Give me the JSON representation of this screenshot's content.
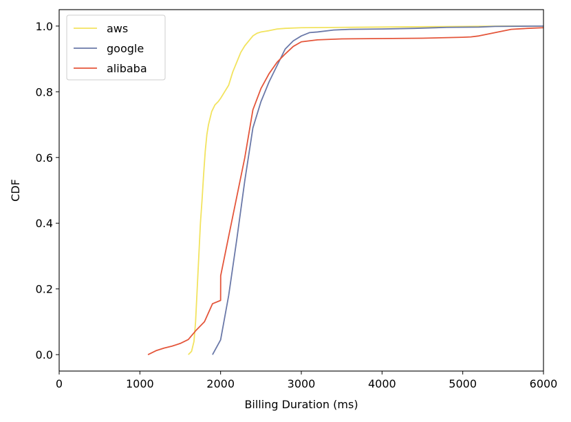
{
  "chart_data": {
    "type": "line",
    "title": "",
    "xlabel": "Billing Duration (ms)",
    "ylabel": "CDF",
    "xlim": [
      0,
      6000
    ],
    "ylim": [
      -0.05,
      1.05
    ],
    "x_ticks": [
      0,
      1000,
      2000,
      3000,
      4000,
      5000,
      6000
    ],
    "x_tick_labels": [
      "0",
      "1000",
      "2000",
      "3000",
      "4000",
      "5000",
      "6000"
    ],
    "y_ticks": [
      0.0,
      0.2,
      0.4,
      0.6,
      0.8,
      1.0
    ],
    "y_tick_labels": [
      "0.0",
      "0.2",
      "0.4",
      "0.6",
      "0.8",
      "1.0"
    ],
    "grid": false,
    "legend_position": "top-left",
    "series": [
      {
        "name": "aws",
        "color": "#f2e35e",
        "x": [
          1600,
          1640,
          1670,
          1690,
          1710,
          1730,
          1750,
          1770,
          1790,
          1810,
          1830,
          1850,
          1870,
          1890,
          1910,
          1930,
          1950,
          1970,
          2000,
          2050,
          2100,
          2150,
          2200,
          2250,
          2300,
          2350,
          2400,
          2450,
          2500,
          2550,
          2600,
          2700,
          2800,
          3000,
          3500,
          4000,
          4500,
          5000,
          5500,
          6000
        ],
        "y": [
          0.0,
          0.01,
          0.04,
          0.1,
          0.2,
          0.3,
          0.4,
          0.47,
          0.55,
          0.62,
          0.67,
          0.7,
          0.72,
          0.74,
          0.75,
          0.76,
          0.765,
          0.77,
          0.78,
          0.8,
          0.82,
          0.86,
          0.89,
          0.92,
          0.94,
          0.955,
          0.97,
          0.978,
          0.982,
          0.984,
          0.986,
          0.991,
          0.993,
          0.995,
          0.996,
          0.997,
          0.998,
          0.999,
          1.0,
          1.0
        ]
      },
      {
        "name": "google",
        "color": "#6a78a8",
        "x": [
          1900,
          2000,
          2100,
          2200,
          2300,
          2400,
          2500,
          2600,
          2700,
          2800,
          2900,
          3000,
          3100,
          3200,
          3400,
          3600,
          4000,
          4400,
          4800,
          5200,
          5400,
          6000
        ],
        "y": [
          0.0,
          0.045,
          0.18,
          0.35,
          0.53,
          0.69,
          0.77,
          0.83,
          0.88,
          0.93,
          0.955,
          0.97,
          0.98,
          0.982,
          0.988,
          0.99,
          0.991,
          0.993,
          0.996,
          0.997,
          0.999,
          1.0
        ]
      },
      {
        "name": "alibaba",
        "color": "#e4553a",
        "x": [
          1100,
          1200,
          1300,
          1400,
          1500,
          1600,
          1700,
          1800,
          1900,
          2000,
          2001,
          2100,
          2200,
          2300,
          2400,
          2500,
          2600,
          2700,
          2800,
          2900,
          3000,
          3200,
          3500,
          4000,
          4500,
          5000,
          5100,
          5200,
          5300,
          5400,
          5500,
          5600,
          5800,
          6000
        ],
        "y": [
          0.0,
          0.012,
          0.02,
          0.026,
          0.034,
          0.046,
          0.075,
          0.1,
          0.155,
          0.165,
          0.24,
          0.36,
          0.48,
          0.6,
          0.745,
          0.81,
          0.855,
          0.89,
          0.915,
          0.938,
          0.952,
          0.958,
          0.961,
          0.962,
          0.963,
          0.966,
          0.967,
          0.97,
          0.975,
          0.98,
          0.985,
          0.99,
          0.993,
          0.995
        ]
      }
    ]
  }
}
